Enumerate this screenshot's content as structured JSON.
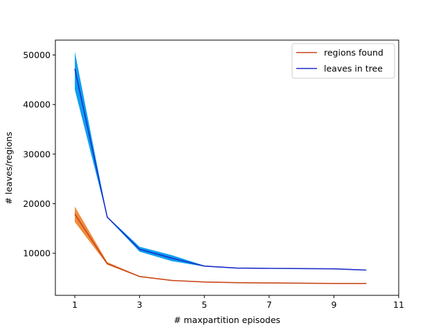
{
  "chart_data": {
    "type": "line",
    "title": "",
    "xlabel": "# maxpartition episodes",
    "ylabel": "# leaves/regions",
    "xlim": [
      0.4,
      11
    ],
    "ylim": [
      1500,
      53000
    ],
    "xticks": [
      1,
      3,
      5,
      7,
      9,
      11
    ],
    "yticks": [
      10000,
      20000,
      30000,
      40000,
      50000
    ],
    "grid": false,
    "legend_position": "upper right",
    "series": [
      {
        "name": "regions found",
        "color": "#c9471b",
        "band_color": "#f08c3c",
        "x": [
          1,
          2,
          3,
          4,
          5,
          6,
          7,
          8,
          9,
          10
        ],
        "y": [
          17900,
          7900,
          5300,
          4500,
          4200,
          4050,
          4000,
          3950,
          3900,
          3900
        ],
        "lower": [
          16300,
          7700,
          5200,
          4400,
          4150,
          4000,
          3950,
          3900,
          3850,
          3850
        ],
        "upper": [
          19400,
          8200,
          5400,
          4600,
          4250,
          4100,
          4050,
          4000,
          3950,
          3950
        ]
      },
      {
        "name": "leaves in tree",
        "color": "#1c2fc8",
        "band_color": "#0a9ef0",
        "x": [
          1,
          2,
          3,
          4,
          5,
          6,
          7,
          8,
          9,
          10
        ],
        "y": [
          47200,
          17300,
          10800,
          9000,
          7400,
          7000,
          6950,
          6900,
          6850,
          6600
        ],
        "lower": [
          43000,
          17200,
          10300,
          8400,
          7300,
          6950,
          6900,
          6850,
          6800,
          6550
        ],
        "upper": [
          50700,
          17400,
          11300,
          9600,
          7500,
          7050,
          7000,
          6950,
          6900,
          6650
        ]
      }
    ]
  }
}
